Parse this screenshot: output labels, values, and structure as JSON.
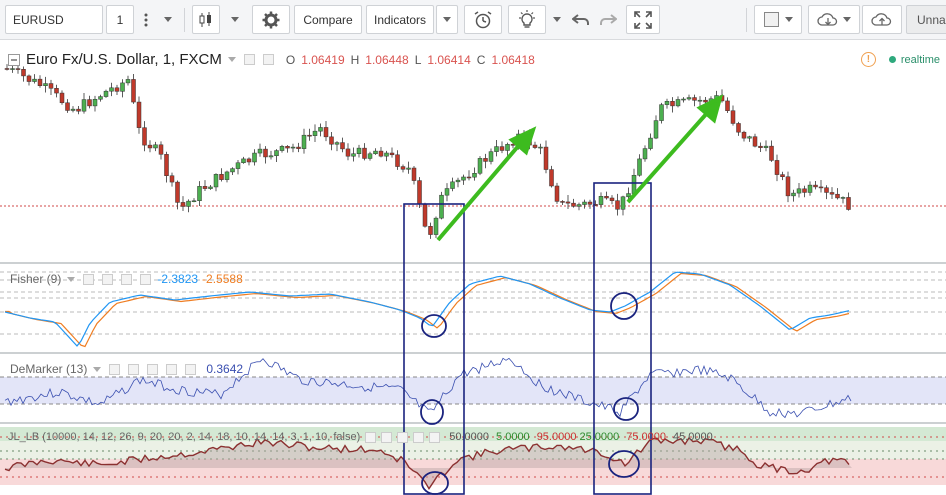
{
  "toolbar": {
    "symbol": "EURUSD",
    "interval": "1",
    "compare_label": "Compare",
    "indicators_label": "Indicators",
    "layout_name": "Unnam"
  },
  "main": {
    "title": "Euro Fx/U.S. Dollar, 1, FXCM",
    "ohlc": [
      {
        "k": "O",
        "v": "1.06419"
      },
      {
        "k": "H",
        "v": "1.06448"
      },
      {
        "k": "L",
        "v": "1.06414"
      },
      {
        "k": "C",
        "v": "1.06418"
      }
    ],
    "realtime_label": "realtime"
  },
  "indicators": {
    "fisher": {
      "name": "Fisher (9)",
      "v1": "-2.3823",
      "v2": "-2.5588",
      "c1": "#2196f3",
      "c2": "#ef7d22"
    },
    "demarker": {
      "name": "DeMarker (13)",
      "v1": "0.3642"
    },
    "jl": {
      "name": "JL_LB (10000, 14, 12, 26, 9, 20, 20, 2, 14, 18, 10, 14, 14, 3, 1, 10, false)",
      "values": [
        {
          "v": "50.0000",
          "c": "#555555"
        },
        {
          "v": "5.0000",
          "c": "#2e8b2e"
        },
        {
          "v": "95.0000",
          "c": "#cc3333"
        },
        {
          "v": "25.0000",
          "c": "#2e8b2e"
        },
        {
          "v": "75.0000",
          "c": "#cc3333"
        },
        {
          "v": "45.0000",
          "c": "#555555"
        }
      ]
    }
  },
  "colors": {
    "up": "#4caf50",
    "down": "#c0392b",
    "arrow": "#3dbb1f",
    "box": "#1a237e"
  }
}
